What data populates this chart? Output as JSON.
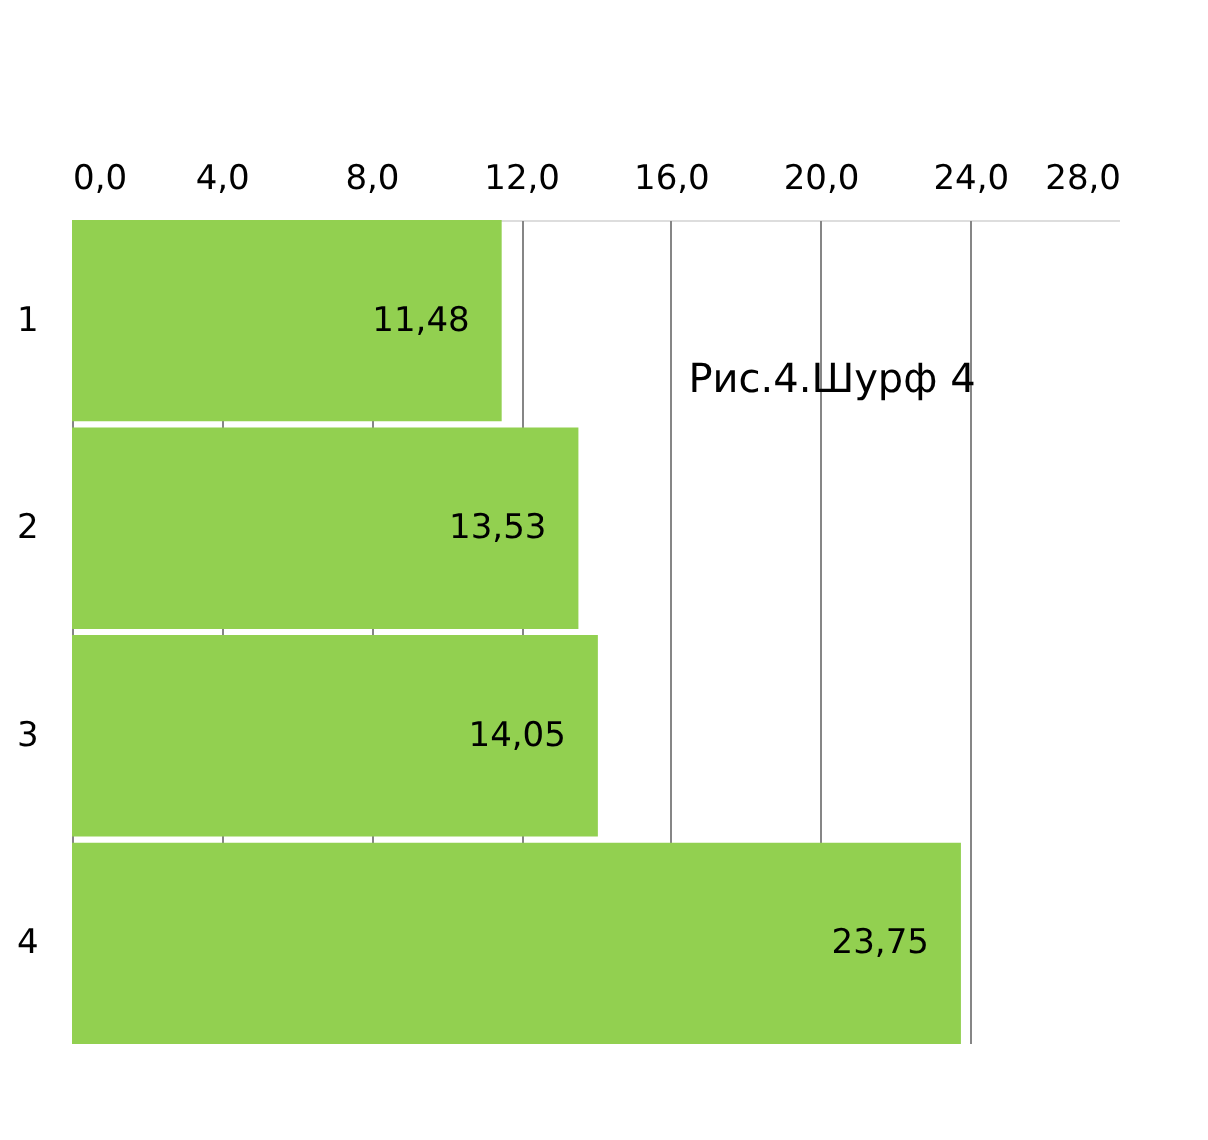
{
  "chart_data": {
    "type": "bar",
    "orientation": "horizontal",
    "title": "Рис.4.Шурф 4",
    "categories": [
      "1",
      "2",
      "3",
      "4"
    ],
    "values": [
      11.48,
      13.53,
      14.05,
      23.75
    ],
    "value_labels": [
      "11,48",
      "13,53",
      "14,05",
      "23,75"
    ],
    "color": "#92d050",
    "xlim": [
      0,
      28
    ],
    "xticks": [
      {
        "value": 0,
        "label": "0,0"
      },
      {
        "value": 4,
        "label": "4,0"
      },
      {
        "value": 8,
        "label": "8,0"
      },
      {
        "value": 12,
        "label": "12,0"
      },
      {
        "value": 16,
        "label": "16,0"
      },
      {
        "value": 20,
        "label": "20,0"
      },
      {
        "value": 24,
        "label": "24,0"
      },
      {
        "value": 28,
        "label": "28,0"
      }
    ],
    "grid": "x"
  }
}
